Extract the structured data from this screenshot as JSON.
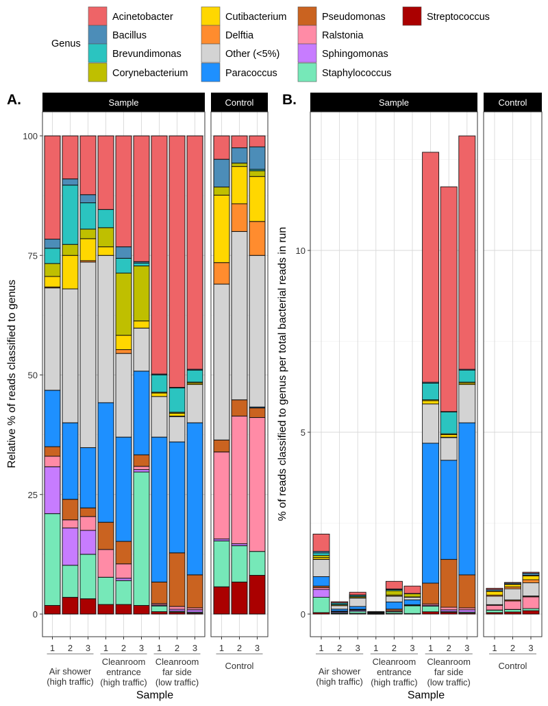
{
  "legend": {
    "title": "Genus",
    "items": [
      {
        "label": "Acinetobacter",
        "color": "#EE6467"
      },
      {
        "label": "Bacillus",
        "color": "#4C8DB8"
      },
      {
        "label": "Brevundimonas",
        "color": "#2BC4C0"
      },
      {
        "label": "Corynebacterium",
        "color": "#BFBF00"
      },
      {
        "label": "Cutibacterium",
        "color": "#FFD700"
      },
      {
        "label": "Delftia",
        "color": "#FF8C2E"
      },
      {
        "label": "Other (<5%)",
        "color": "#D3D3D3"
      },
      {
        "label": "Paracoccus",
        "color": "#1E90FF"
      },
      {
        "label": "Pseudomonas",
        "color": "#CA6320"
      },
      {
        "label": "Ralstonia",
        "color": "#FF8BA6"
      },
      {
        "label": "Sphingomonas",
        "color": "#C77CFF"
      },
      {
        "label": "Staphylococcus",
        "color": "#76E8B8"
      },
      {
        "label": "Streptococcus",
        "color": "#AA0000"
      }
    ]
  },
  "chart_data": [
    {
      "panel": "A.",
      "type": "bar",
      "stacked": true,
      "facets": [
        "Sample",
        "Control"
      ],
      "xlabel": "Sample",
      "ylabel": "Relative % of reads classified to genus",
      "yticks": [
        "0",
        "25",
        "50",
        "75",
        "100"
      ],
      "ylim": [
        -4.7,
        105
      ],
      "groups": [
        {
          "facet": "Sample",
          "lines": [
            "Air shower",
            "(high traffic)"
          ]
        },
        {
          "facet": "Sample",
          "lines": [
            "Cleanroom",
            "entrance",
            "(high traffic)"
          ]
        },
        {
          "facet": "Sample",
          "lines": [
            "Cleanroom",
            "far side",
            "(low traffic)"
          ]
        },
        {
          "facet": "Control",
          "lines": [
            "Control"
          ]
        }
      ],
      "series_order": [
        "Acinetobacter",
        "Bacillus",
        "Brevundimonas",
        "Corynebacterium",
        "Cutibacterium",
        "Delftia",
        "Other (<5%)",
        "Paracoccus",
        "Pseudomonas",
        "Ralstonia",
        "Sphingomonas",
        "Staphylococcus",
        "Streptococcus"
      ],
      "bars": [
        {
          "group": 0,
          "label": "1",
          "values": [
            21.6,
            1.9,
            3.2,
            2.7,
            2.2,
            0.2,
            21.4,
            11.8,
            2,
            2.2,
            9.8,
            19.2,
            1.8
          ]
        },
        {
          "group": 0,
          "label": "2",
          "values": [
            9,
            1.3,
            12.4,
            2.3,
            7,
            0,
            28,
            16,
            4.3,
            1.7,
            7.8,
            6.7,
            3.5
          ]
        },
        {
          "group": 0,
          "label": "3",
          "values": [
            12.3,
            1.7,
            5.5,
            2,
            4.6,
            0.3,
            38.8,
            12.6,
            1.8,
            2.9,
            5,
            9.3,
            3.2
          ]
        },
        {
          "group": 1,
          "label": "1",
          "values": [
            15.4,
            0,
            3.8,
            4,
            1.8,
            0,
            30.8,
            25,
            5.7,
            5.8,
            0,
            5.7,
            2
          ]
        },
        {
          "group": 1,
          "label": "2",
          "values": [
            23.2,
            2.4,
            3.1,
            13,
            3,
            0.8,
            17.5,
            21.8,
            4.7,
            3,
            0.5,
            5,
            2
          ]
        },
        {
          "group": 1,
          "label": "3",
          "values": [
            26.3,
            0.3,
            0.6,
            11.5,
            1.5,
            0,
            9,
            17.5,
            2.4,
            0.7,
            0.5,
            27.9,
            1.8
          ]
        },
        {
          "group": 2,
          "label": "1",
          "values": [
            49.8,
            0.2,
            3.6,
            0.2,
            0.7,
            0,
            8.5,
            30.3,
            4.5,
            0.3,
            0.2,
            1.2,
            0.5
          ]
        },
        {
          "group": 2,
          "label": "2",
          "values": [
            52.6,
            0.1,
            5.1,
            0.2,
            0.6,
            0.1,
            5.3,
            23.2,
            11.2,
            0.6,
            0.4,
            0.2,
            0.4
          ]
        },
        {
          "group": 2,
          "label": "3",
          "values": [
            48.8,
            0.2,
            2.5,
            0.2,
            0.3,
            0,
            8,
            31.8,
            6.9,
            0.4,
            0.5,
            0.2,
            0.2
          ]
        },
        {
          "group": 3,
          "label": "1",
          "values": [
            4.9,
            5.8,
            0,
            1.7,
            14.1,
            4.5,
            32.6,
            0,
            2.5,
            18.2,
            0.4,
            9.6,
            5.7
          ]
        },
        {
          "group": 3,
          "label": "2",
          "values": [
            2.5,
            3.2,
            0,
            0.7,
            7.8,
            5.8,
            35.2,
            0,
            3.4,
            26.7,
            0.4,
            7.6,
            6.7
          ]
        },
        {
          "group": 3,
          "label": "3",
          "values": [
            2.3,
            4.7,
            0.3,
            1.2,
            9.4,
            7.1,
            31.7,
            0.2,
            2,
            28,
            0,
            5,
            8.1
          ]
        }
      ]
    },
    {
      "panel": "B.",
      "type": "bar",
      "stacked": true,
      "facets": [
        "Sample",
        "Control"
      ],
      "xlabel": "Sample",
      "ylabel": "% of reads classified to genus per total bacterial reads in run",
      "yticks": [
        "0",
        "5",
        "10"
      ],
      "ylim": [
        -0.62,
        13.8
      ],
      "note": "each bar = panel A composition scaled to bar total",
      "totals": [
        2.2,
        0.34,
        0.6,
        0.07,
        0.9,
        0.77,
        12.7,
        11.75,
        13.15,
        0.71,
        0.87,
        1.15
      ]
    }
  ]
}
